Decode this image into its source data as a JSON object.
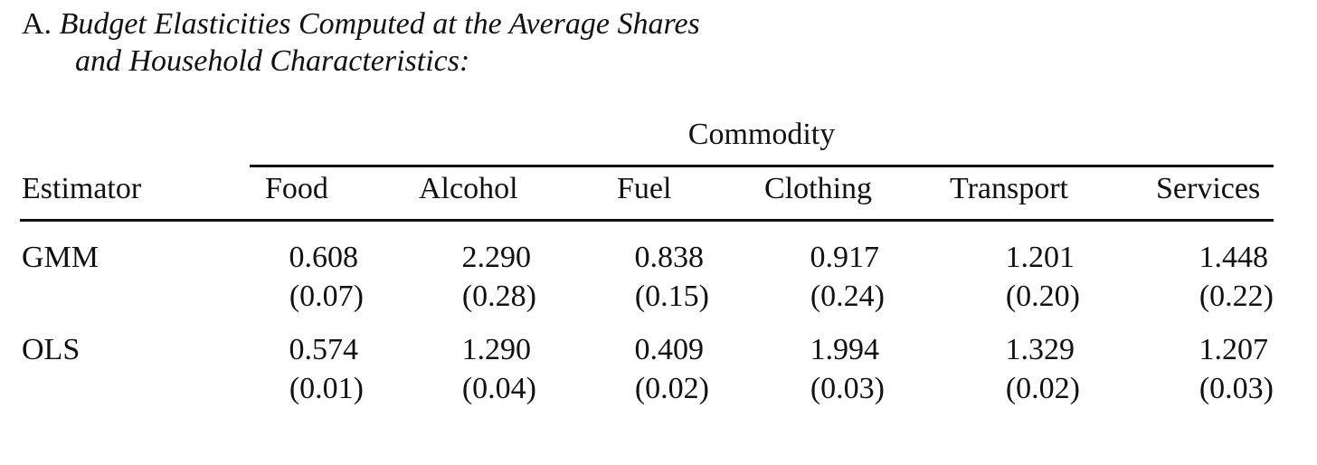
{
  "title": {
    "letter": "A.",
    "line1": "Budget Elasticities Computed at the Average Shares",
    "line2": "and Household Characteristics:"
  },
  "table": {
    "spanner": "Commodity",
    "stub_header": "Estimator",
    "columns": [
      "Food",
      "Alcohol",
      "Fuel",
      "Clothing",
      "Transport",
      "Services"
    ],
    "rows": [
      {
        "label": "GMM",
        "values": [
          "0.608",
          "2.290",
          "0.838",
          "0.917",
          "1.201",
          "1.448"
        ],
        "errors": [
          "(0.07)",
          "(0.28)",
          "(0.15)",
          "(0.24)",
          "(0.20)",
          "(0.22)"
        ]
      },
      {
        "label": "OLS",
        "values": [
          "0.574",
          "1.290",
          "0.409",
          "1.994",
          "1.329",
          "1.207"
        ],
        "errors": [
          "(0.01)",
          "(0.04)",
          "(0.02)",
          "(0.03)",
          "(0.02)",
          "(0.03)"
        ]
      }
    ]
  }
}
